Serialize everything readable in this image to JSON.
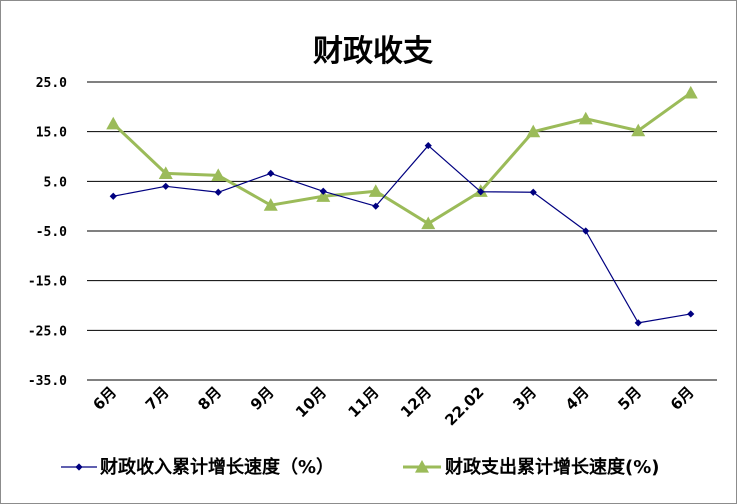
{
  "chart_data": {
    "type": "line",
    "title": "财政收支",
    "categories": [
      "6月",
      "7月",
      "8月",
      "9月",
      "10月",
      "11月",
      "12月",
      "22.02",
      "3月",
      "4月",
      "5月",
      "6月"
    ],
    "y_ticks": [
      "25.0",
      "15.0",
      "5.0",
      "-5.0",
      "-15.0",
      "-25.0",
      "-35.0"
    ],
    "ylim": [
      -35,
      25
    ],
    "grid": true,
    "legend_position": "bottom",
    "series": [
      {
        "name": "财政收入累计增长速度（%）",
        "color": "#000080",
        "marker": "diamond",
        "values": [
          2.0,
          4.0,
          2.8,
          6.6,
          3.0,
          0.0,
          12.2,
          2.9,
          2.8,
          -5.0,
          -23.5,
          -21.7
        ]
      },
      {
        "name": "财政支出累计增长速度(%)",
        "color": "#9bbb59",
        "marker": "triangle",
        "values": [
          16.6,
          6.6,
          6.2,
          0.2,
          2.0,
          3.0,
          -3.5,
          3.0,
          15.0,
          17.6,
          15.2,
          22.8
        ]
      }
    ]
  }
}
